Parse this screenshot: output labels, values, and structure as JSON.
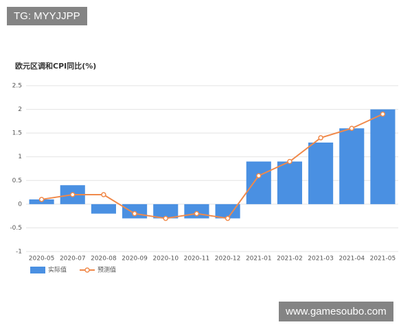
{
  "overlays": [
    "TG: MYYJJPP",
    "www.gamesoubo.com"
  ],
  "chart_data": {
    "type": "bar",
    "title": "欧元区调和CPI同比(%)",
    "categories": [
      "2020-05",
      "2020-07",
      "2020-08",
      "2020-09",
      "2020-10",
      "2020-11",
      "2020-12",
      "2021-01",
      "2021-02",
      "2021-03",
      "2021-04",
      "2021-05"
    ],
    "series": [
      {
        "name": "实际值",
        "type": "bar",
        "color": "#4a90e2",
        "values": [
          0.1,
          0.4,
          -0.2,
          -0.3,
          -0.3,
          -0.3,
          -0.3,
          0.9,
          0.9,
          1.3,
          1.6,
          2.0
        ]
      },
      {
        "name": "预测值",
        "type": "line",
        "color": "#f0894a",
        "values": [
          0.1,
          0.2,
          0.2,
          -0.2,
          -0.3,
          -0.2,
          -0.3,
          0.6,
          0.9,
          1.4,
          1.6,
          1.9
        ]
      }
    ],
    "ylim": [
      -1,
      2.5
    ],
    "yticks": [
      -1,
      -0.5,
      0,
      0.5,
      1,
      1.5,
      2,
      2.5
    ],
    "grid": true
  }
}
